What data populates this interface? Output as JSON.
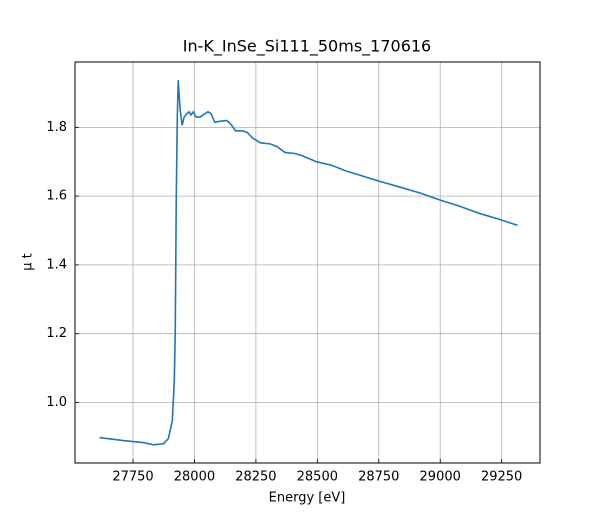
{
  "chart_data": {
    "type": "line",
    "title": "In-K_InSe_Si111_50ms_170616",
    "xlabel": "Energy [eV]",
    "ylabel": "μ t",
    "x": [
      27614,
      27714,
      27794,
      27834,
      27874,
      27894,
      27910,
      27918,
      27922,
      27926,
      27930,
      27934,
      27942,
      27950,
      27958,
      27970,
      27978,
      27986,
      27995,
      28007,
      28023,
      28035,
      28055,
      28067,
      28083,
      28107,
      28131,
      28147,
      28167,
      28195,
      28215,
      28235,
      28268,
      28308,
      28336,
      28368,
      28408,
      28436,
      28496,
      28557,
      28617,
      28677,
      28749,
      28837,
      28918,
      29002,
      29078,
      29158,
      29238,
      29315
    ],
    "series": [
      {
        "color": "#1f77b4",
        "values": [
          0.898,
          0.889,
          0.883,
          0.877,
          0.88,
          0.895,
          0.947,
          1.064,
          1.21,
          1.59,
          1.82,
          1.937,
          1.85,
          1.806,
          1.83,
          1.84,
          1.845,
          1.836,
          1.845,
          1.83,
          1.83,
          1.836,
          1.845,
          1.84,
          1.815,
          1.818,
          1.82,
          1.81,
          1.79,
          1.79,
          1.785,
          1.77,
          1.755,
          1.752,
          1.744,
          1.727,
          1.724,
          1.718,
          1.7,
          1.69,
          1.673,
          1.66,
          1.644,
          1.626,
          1.609,
          1.588,
          1.571,
          1.55,
          1.533,
          1.515
        ]
      }
    ],
    "xlim": [
      27514,
      29406
    ],
    "ylim": [
      0.824,
      1.99
    ],
    "xticks": [
      27750,
      28000,
      28250,
      28500,
      28750,
      29000,
      29250
    ],
    "yticks": [
      {
        "value": 1.0,
        "label": "1.0"
      },
      {
        "value": 1.2,
        "label": "1.2"
      },
      {
        "value": 1.4,
        "label": "1.4"
      },
      {
        "value": 1.6,
        "label": "1.6"
      },
      {
        "value": 1.8,
        "label": "1.8"
      }
    ],
    "grid": true
  }
}
